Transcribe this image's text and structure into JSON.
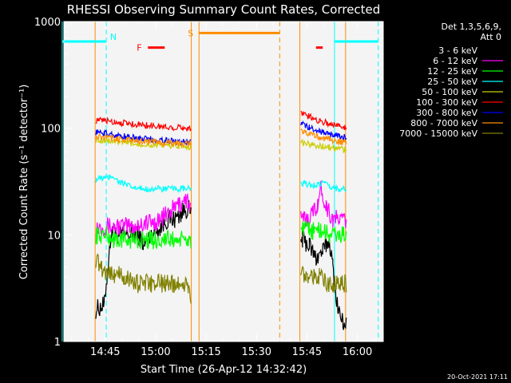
{
  "chart_data": {
    "type": "line",
    "title": "RHESSI Observing Summary Count Rates, Corrected",
    "xlabel": "Start Time (26-Apr-12 14:32:42)",
    "ylabel": "Corrected Count Rate (s⁻¹ detector⁻¹)",
    "y_scale": "log",
    "ylim": [
      1,
      1000
    ],
    "xlim_minutes": [
      0,
      95
    ],
    "x_ticks": [
      {
        "label": "14:45",
        "t": 12.3
      },
      {
        "label": "15:00",
        "t": 27.3
      },
      {
        "label": "15:15",
        "t": 42.3
      },
      {
        "label": "15:30",
        "t": 57.3
      },
      {
        "label": "15:45",
        "t": 72.3
      },
      {
        "label": "16:00",
        "t": 87.3
      }
    ],
    "y_ticks": [
      {
        "label": "1",
        "v": 1
      },
      {
        "label": "10",
        "v": 10
      },
      {
        "label": "100",
        "v": 100
      },
      {
        "label": "1000",
        "v": 1000
      }
    ],
    "legend_title": [
      "Det 1,3,5,6,9,",
      "Att 0"
    ],
    "legend_position": "right",
    "series": [
      {
        "name": "3 - 6 keV",
        "color": "#000000",
        "x": [
          9.5,
          12,
          14,
          17,
          20,
          22,
          24,
          26,
          29,
          31,
          33,
          35,
          37,
          37.8,
          70.5,
          71,
          73,
          75,
          77,
          78,
          79,
          80,
          81.5,
          83,
          84
        ],
        "y": [
          2,
          2.2,
          10,
          10,
          10,
          10,
          8,
          10,
          12,
          14,
          14,
          16,
          18,
          15,
          9,
          9,
          8,
          6,
          7,
          8,
          9,
          5,
          2,
          1.5,
          1.5
        ]
      },
      {
        "name": "6 - 12 keV",
        "color": "#ff00ff",
        "x": [
          9.5,
          12,
          15,
          18,
          21,
          24,
          27,
          30,
          33,
          35,
          36,
          37,
          37.8,
          70.5,
          72,
          74,
          75.5,
          76.5,
          78,
          80,
          82,
          84
        ],
        "y": [
          12,
          12,
          12,
          12,
          12,
          13,
          13,
          15,
          18,
          20,
          22,
          20,
          17,
          14,
          14,
          16,
          20,
          27,
          19,
          14,
          14,
          14
        ]
      },
      {
        "name": "12 - 25 keV",
        "color": "#00ff00",
        "x": [
          9.5,
          12,
          15,
          20,
          25,
          30,
          35,
          37.8,
          70.5,
          73,
          76,
          79,
          82,
          84
        ],
        "y": [
          10,
          10,
          9,
          9,
          9,
          9,
          9,
          9,
          11,
          11,
          11,
          10,
          10,
          10
        ]
      },
      {
        "name": "25 - 50 keV",
        "color": "#00ffff",
        "x": [
          9.5,
          11,
          13,
          14.5,
          16,
          18,
          20,
          22,
          25,
          30,
          35,
          37.8,
          70.5,
          72,
          74,
          76,
          77,
          79,
          82,
          84
        ],
        "y": [
          33,
          34,
          34,
          36,
          32,
          30,
          28,
          27,
          27,
          27,
          27,
          27,
          30,
          30,
          29,
          30,
          31,
          28,
          27,
          27
        ]
      },
      {
        "name": "50 - 100 keV",
        "color": "#cccc00",
        "x": [
          9.5,
          12,
          15,
          20,
          25,
          30,
          35,
          37.8,
          70.5,
          73,
          76,
          79,
          82,
          84
        ],
        "y": [
          78,
          77,
          75,
          72,
          70,
          69,
          68,
          67,
          74,
          70,
          68,
          66,
          64,
          63
        ]
      },
      {
        "name": "100 - 300 keV",
        "color": "#ff0000",
        "x": [
          9.5,
          12,
          15,
          20,
          25,
          30,
          35,
          37.8,
          70.5,
          73,
          76,
          79,
          82,
          84
        ],
        "y": [
          118,
          118,
          115,
          110,
          106,
          103,
          101,
          100,
          140,
          128,
          118,
          110,
          105,
          102
        ]
      },
      {
        "name": "300 - 800 keV",
        "color": "#0000ff",
        "x": [
          9.5,
          12,
          15,
          20,
          25,
          30,
          35,
          37.8,
          70.5,
          73,
          76,
          79,
          82,
          84
        ],
        "y": [
          92,
          90,
          86,
          82,
          79,
          77,
          75,
          74,
          112,
          101,
          94,
          88,
          84,
          82
        ]
      },
      {
        "name": "800 - 7000 keV",
        "color": "#ff8c00",
        "x": [
          9.5,
          12,
          15,
          20,
          25,
          30,
          35,
          37.8,
          70.5,
          73,
          76,
          79,
          82,
          84
        ],
        "y": [
          83,
          82,
          80,
          77,
          75,
          73,
          72,
          71,
          96,
          88,
          82,
          78,
          75,
          73
        ]
      },
      {
        "name": "7000 - 15000 keV",
        "color": "#808000",
        "x": [
          9.5,
          11,
          13,
          15,
          18,
          22,
          26,
          30,
          34,
          37,
          37.8,
          70.5,
          72,
          74,
          76,
          78,
          80,
          82,
          84
        ],
        "y": [
          6,
          5,
          4.5,
          4.3,
          4,
          3.5,
          3.5,
          3.5,
          3.5,
          3.4,
          2,
          4.5,
          4.3,
          4.2,
          4,
          3.5,
          3.5,
          3.5,
          3.5
        ]
      }
    ],
    "flags": [
      {
        "label": "N",
        "color": "#00ffff",
        "segments": [
          [
            -0.5,
            12.5
          ],
          [
            80.5,
            93.5
          ]
        ],
        "level": 650
      },
      {
        "label": "S",
        "color": "#ff8c00",
        "segments": [
          [
            40.2,
            64.2
          ]
        ],
        "level": 780
      },
      {
        "label": "F",
        "color": "#ff0000",
        "segments": [
          [
            25.0,
            30.0
          ],
          [
            75.0,
            77.0
          ]
        ],
        "level": 570
      }
    ],
    "vertical_lines": [
      {
        "t": -0.5,
        "color": "#00ffff",
        "style": "solid"
      },
      {
        "t": 12.6,
        "color": "#00ffff",
        "style": "dashed"
      },
      {
        "t": 9.3,
        "color": "#ff8c00",
        "style": "solid"
      },
      {
        "t": 37.9,
        "color": "#ff8c00",
        "style": "solid"
      },
      {
        "t": 40.2,
        "color": "#ff8c00",
        "style": "solid"
      },
      {
        "t": 64.2,
        "color": "#ff8c00",
        "style": "dashed"
      },
      {
        "t": 70.2,
        "color": "#ff8c00",
        "style": "solid"
      },
      {
        "t": 80.5,
        "color": "#00ffff",
        "style": "solid"
      },
      {
        "t": 83.8,
        "color": "#ff8c00",
        "style": "solid"
      },
      {
        "t": 93.5,
        "color": "#00ffff",
        "style": "dashed"
      }
    ]
  },
  "footer": {
    "date": "20-Oct-2021 17:11"
  }
}
